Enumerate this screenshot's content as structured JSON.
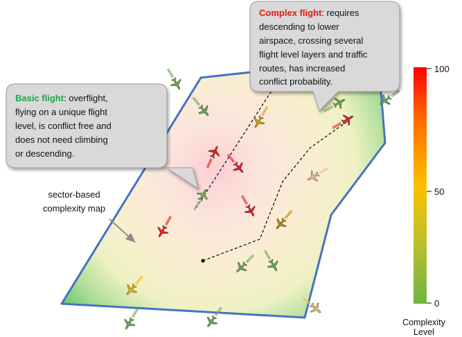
{
  "callouts": {
    "basic": {
      "title": "Basic flight",
      "title_color": "#1fa64a",
      "lines": [
        ": overflight,",
        "flying on a unique flight",
        "level, is conflict free and",
        "does not need climbing",
        "or descending."
      ]
    },
    "complex": {
      "title": "Complex flight",
      "title_color": "#e8140c",
      "lines": [
        ": requires",
        "descending to lower",
        "airspace, crossing several",
        "flight level layers and traffic",
        "routes, has increased",
        "conflict probability."
      ]
    }
  },
  "map_label": [
    "sector-based",
    "complexity map"
  ],
  "colorbar": {
    "ticks": [
      "100",
      "50",
      "0"
    ],
    "title": [
      "Complexity",
      "Level"
    ],
    "colors": {
      "high": "#ff1a00",
      "mid": "#ffc000",
      "low": "#6fb43f"
    }
  },
  "sector": {
    "border_color": "#4472c4"
  },
  "aircraft": [
    {
      "level": 10,
      "color": "#6aa84f"
    },
    {
      "level": 10,
      "color": "#6aa84f"
    },
    {
      "level": 45,
      "color": "#d4a017"
    },
    {
      "level": 95,
      "color": "#e02020"
    },
    {
      "level": 95,
      "color": "#e02020"
    },
    {
      "level": 95,
      "color": "#e02020"
    },
    {
      "level": 15,
      "color": "#7cb35a"
    },
    {
      "level": 95,
      "color": "#e02020"
    },
    {
      "level": 30,
      "color": "#f4b6a6"
    },
    {
      "level": 40,
      "color": "#b8860b"
    },
    {
      "level": 95,
      "color": "#e02020"
    },
    {
      "level": 50,
      "color": "#f1b500"
    },
    {
      "level": 10,
      "color": "#6aa84f"
    },
    {
      "level": 10,
      "color": "#6aa84f"
    },
    {
      "level": 10,
      "color": "#6aa84f"
    },
    {
      "level": 10,
      "color": "#6aa84f"
    },
    {
      "level": 40,
      "color": "#e3c06a"
    },
    {
      "level": 10,
      "color": "#6aa84f"
    },
    {
      "level": 10,
      "color": "#6aa84f"
    }
  ]
}
